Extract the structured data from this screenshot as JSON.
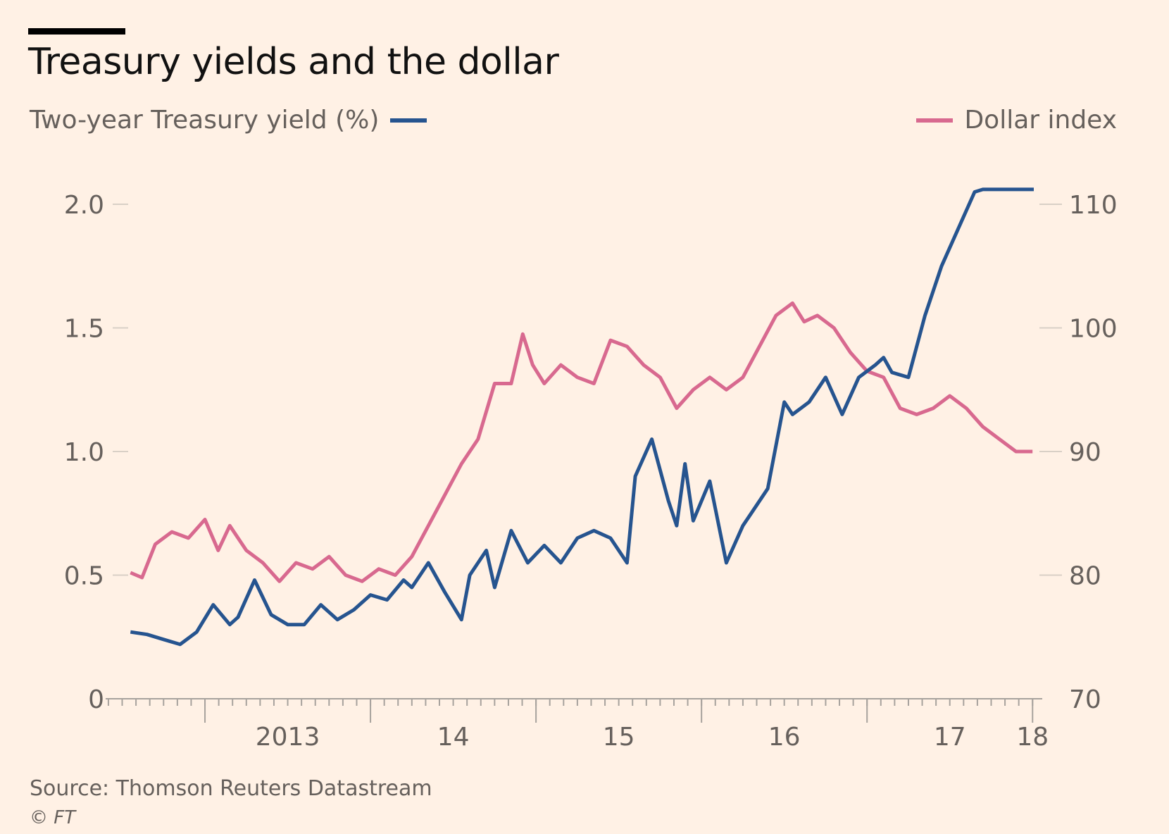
{
  "title": "Treasury yields and the dollar",
  "source": "Source: Thomson Reuters Datastream",
  "credit": "© FT",
  "colors": {
    "yield": "#26548f",
    "dollar": "#d8698f",
    "background": "#fff1e5",
    "axis": "#a7a29d",
    "text": "#66605c"
  },
  "chart_data": {
    "type": "line",
    "title": "Treasury yields and the dollar",
    "x_tick_labels": [
      "2013",
      "14",
      "15",
      "16",
      "17",
      "18"
    ],
    "x_tick_values": [
      2013.5,
      2014.5,
      2015.5,
      2016.5,
      2017.5,
      2018.0
    ],
    "xlim": [
      2012.4,
      2018.05
    ],
    "y_left": {
      "label": "Two-year Treasury yield (%)",
      "ticks": [
        0,
        0.5,
        1.0,
        1.5,
        2.0
      ],
      "tick_labels": [
        "0",
        "0.5",
        "1.0",
        "1.5",
        "2.0"
      ],
      "lim": [
        0,
        2.0
      ]
    },
    "y_right": {
      "label": "Dollar index",
      "ticks": [
        70,
        80,
        90,
        100,
        110
      ],
      "tick_labels": [
        "70",
        "80",
        "90",
        "100",
        "110"
      ],
      "lim": [
        70,
        110
      ]
    },
    "legend_placement": "top",
    "grid": false,
    "series": [
      {
        "name": "Two-year Treasury yield (%)",
        "axis": "left",
        "x": [
          2012.55,
          2012.65,
          2012.75,
          2012.85,
          2012.95,
          2013.05,
          2013.15,
          2013.2,
          2013.3,
          2013.4,
          2013.5,
          2013.6,
          2013.7,
          2013.8,
          2013.9,
          2014.0,
          2014.1,
          2014.2,
          2014.25,
          2014.35,
          2014.45,
          2014.55,
          2014.6,
          2014.7,
          2014.75,
          2014.85,
          2014.95,
          2015.05,
          2015.15,
          2015.25,
          2015.35,
          2015.45,
          2015.55,
          2015.6,
          2015.7,
          2015.8,
          2015.85,
          2015.9,
          2015.95,
          2016.05,
          2016.15,
          2016.25,
          2016.3,
          2016.4,
          2016.5,
          2016.55,
          2016.65,
          2016.75,
          2016.85,
          2016.95,
          2017.05,
          2017.1,
          2017.15,
          2017.25,
          2017.35,
          2017.45,
          2017.55,
          2017.65,
          2017.7,
          2017.8,
          2017.9,
          2018.0,
          2018.05
        ],
        "y": [
          0.27,
          0.26,
          0.24,
          0.22,
          0.27,
          0.38,
          0.3,
          0.33,
          0.48,
          0.34,
          0.3,
          0.3,
          0.38,
          0.32,
          0.36,
          0.42,
          0.4,
          0.48,
          0.45,
          0.55,
          0.43,
          0.32,
          0.5,
          0.6,
          0.45,
          0.68,
          0.55,
          0.62,
          0.55,
          0.65,
          0.68,
          0.65,
          0.55,
          0.9,
          1.05,
          0.8,
          0.7,
          0.95,
          0.72,
          0.88,
          0.55,
          0.7,
          0.75,
          0.85,
          1.2,
          1.15,
          1.2,
          1.3,
          1.15,
          1.3,
          1.35,
          1.38,
          1.32,
          1.3,
          1.55,
          1.75,
          1.9,
          2.05,
          2.06,
          2.06,
          2.06,
          2.06,
          2.06
        ]
      },
      {
        "name": "Dollar index",
        "axis": "right",
        "x": [
          2012.55,
          2012.62,
          2012.7,
          2012.8,
          2012.9,
          2013.0,
          2013.08,
          2013.15,
          2013.25,
          2013.35,
          2013.45,
          2013.55,
          2013.65,
          2013.75,
          2013.85,
          2013.95,
          2014.05,
          2014.15,
          2014.25,
          2014.35,
          2014.45,
          2014.55,
          2014.65,
          2014.75,
          2014.85,
          2014.92,
          2014.98,
          2015.05,
          2015.15,
          2015.25,
          2015.35,
          2015.45,
          2015.55,
          2015.65,
          2015.75,
          2015.85,
          2015.95,
          2016.05,
          2016.15,
          2016.25,
          2016.35,
          2016.45,
          2016.55,
          2016.62,
          2016.7,
          2016.8,
          2016.9,
          2017.0,
          2017.1,
          2017.2,
          2017.3,
          2017.4,
          2017.5,
          2017.6,
          2017.7,
          2017.8,
          2017.9,
          2018.0
        ],
        "y": [
          80.2,
          79.8,
          82.5,
          83.5,
          83.0,
          84.5,
          82.0,
          84.0,
          82.0,
          81.0,
          79.5,
          81.0,
          80.5,
          81.5,
          80.0,
          79.5,
          80.5,
          80.0,
          81.5,
          84.0,
          86.5,
          89.0,
          91.0,
          95.5,
          95.5,
          99.5,
          97.0,
          95.5,
          97.0,
          96.0,
          95.5,
          99.0,
          98.5,
          97.0,
          96.0,
          93.5,
          95.0,
          96.0,
          95.0,
          96.0,
          98.5,
          101.0,
          102.0,
          100.5,
          101.0,
          100.0,
          98.0,
          96.5,
          96.0,
          93.5,
          93.0,
          93.5,
          94.5,
          93.5,
          92.0,
          91.0,
          90.0,
          90.0
        ]
      }
    ]
  }
}
